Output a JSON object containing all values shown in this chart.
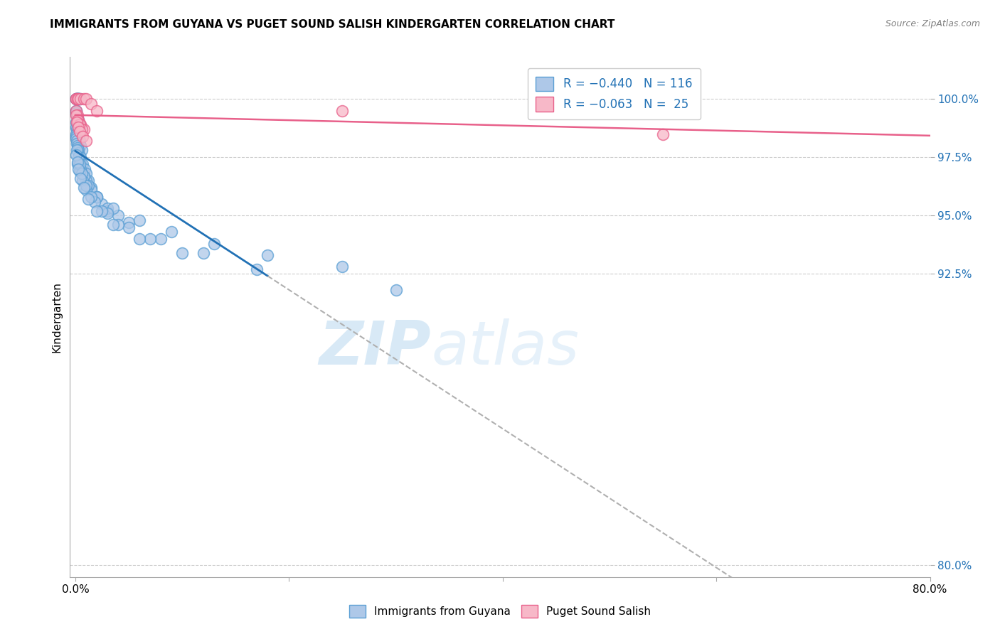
{
  "title": "IMMIGRANTS FROM GUYANA VS PUGET SOUND SALISH KINDERGARTEN CORRELATION CHART",
  "source": "Source: ZipAtlas.com",
  "ylabel": "Kindergarten",
  "x_ticks": [
    0.0,
    20.0,
    40.0,
    60.0,
    80.0
  ],
  "y_ticks": [
    80.0,
    92.5,
    95.0,
    97.5,
    100.0
  ],
  "y_tick_labels": [
    "80.0%",
    "92.5%",
    "95.0%",
    "97.5%",
    "100.0%"
  ],
  "xlim": [
    -0.5,
    80.0
  ],
  "ylim": [
    79.5,
    101.8
  ],
  "blue_color": "#aec8e8",
  "blue_edge_color": "#5a9fd4",
  "pink_color": "#f7b8c8",
  "pink_edge_color": "#e8608a",
  "trend_blue_color": "#2171b5",
  "trend_pink_color": "#e8608a",
  "trend_dash_color": "#b0b0b0",
  "legend_label_blue": "Immigrants from Guyana",
  "legend_label_pink": "Puget Sound Salish",
  "watermark_zip": "ZIP",
  "watermark_atlas": "atlas",
  "blue_x": [
    0.05,
    0.08,
    0.1,
    0.12,
    0.15,
    0.18,
    0.2,
    0.22,
    0.25,
    0.28,
    0.3,
    0.35,
    0.4,
    0.05,
    0.08,
    0.1,
    0.15,
    0.2,
    0.25,
    0.3,
    0.4,
    0.5,
    0.05,
    0.1,
    0.15,
    0.2,
    0.25,
    0.3,
    0.35,
    0.4,
    0.5,
    0.6,
    0.05,
    0.08,
    0.1,
    0.12,
    0.15,
    0.18,
    0.2,
    0.25,
    0.3,
    0.35,
    0.4,
    0.5,
    0.6,
    0.7,
    0.8,
    0.5,
    0.7,
    0.9,
    1.0,
    1.2,
    1.5,
    2.0,
    2.5,
    3.0,
    1.0,
    1.5,
    2.0,
    3.0,
    4.0,
    5.0,
    0.3,
    0.5,
    0.8,
    1.2,
    2.0,
    3.5,
    6.0,
    9.0,
    13.0,
    18.0,
    25.0,
    0.2,
    0.4,
    0.7,
    1.0,
    1.8,
    3.0,
    5.0,
    8.0,
    0.15,
    0.25,
    0.4,
    0.6,
    1.0,
    1.5,
    2.5,
    4.0,
    7.0,
    12.0,
    0.1,
    0.2,
    0.3,
    0.5,
    0.8,
    1.2,
    2.0,
    3.5,
    6.0,
    10.0,
    17.0,
    30.0
  ],
  "blue_y": [
    100.0,
    100.0,
    100.0,
    100.0,
    100.0,
    100.0,
    100.0,
    100.0,
    100.0,
    100.0,
    100.0,
    100.0,
    100.0,
    99.5,
    99.5,
    99.4,
    99.3,
    99.2,
    99.1,
    99.0,
    98.9,
    98.7,
    99.0,
    98.8,
    98.7,
    98.6,
    98.5,
    98.4,
    98.3,
    98.2,
    98.0,
    97.8,
    98.5,
    98.4,
    98.3,
    98.2,
    98.1,
    98.0,
    97.9,
    97.8,
    97.7,
    97.6,
    97.5,
    97.3,
    97.1,
    97.0,
    96.8,
    97.5,
    97.2,
    97.0,
    96.8,
    96.5,
    96.2,
    95.8,
    95.5,
    95.2,
    96.5,
    96.1,
    95.8,
    95.3,
    95.0,
    94.7,
    97.3,
    97.0,
    96.7,
    96.3,
    95.8,
    95.3,
    94.8,
    94.3,
    93.8,
    93.3,
    92.8,
    97.2,
    96.9,
    96.5,
    96.1,
    95.6,
    95.1,
    94.5,
    94.0,
    97.8,
    97.5,
    97.2,
    96.8,
    96.3,
    95.8,
    95.2,
    94.6,
    94.0,
    93.4,
    97.6,
    97.3,
    97.0,
    96.6,
    96.2,
    95.7,
    95.2,
    94.6,
    94.0,
    93.4,
    92.7,
    91.8
  ],
  "pink_x": [
    0.05,
    0.1,
    0.2,
    0.3,
    0.5,
    0.8,
    1.0,
    1.5,
    2.0,
    0.1,
    0.2,
    0.3,
    0.5,
    0.8,
    0.1,
    0.2,
    0.4,
    0.6,
    25.0,
    55.0,
    0.15,
    0.25,
    0.4,
    0.7,
    1.0
  ],
  "pink_y": [
    100.0,
    100.0,
    100.0,
    100.0,
    100.0,
    100.0,
    100.0,
    99.8,
    99.5,
    99.5,
    99.3,
    99.1,
    98.9,
    98.7,
    99.3,
    99.1,
    98.9,
    98.7,
    99.5,
    98.5,
    99.0,
    98.8,
    98.6,
    98.4,
    98.2
  ]
}
